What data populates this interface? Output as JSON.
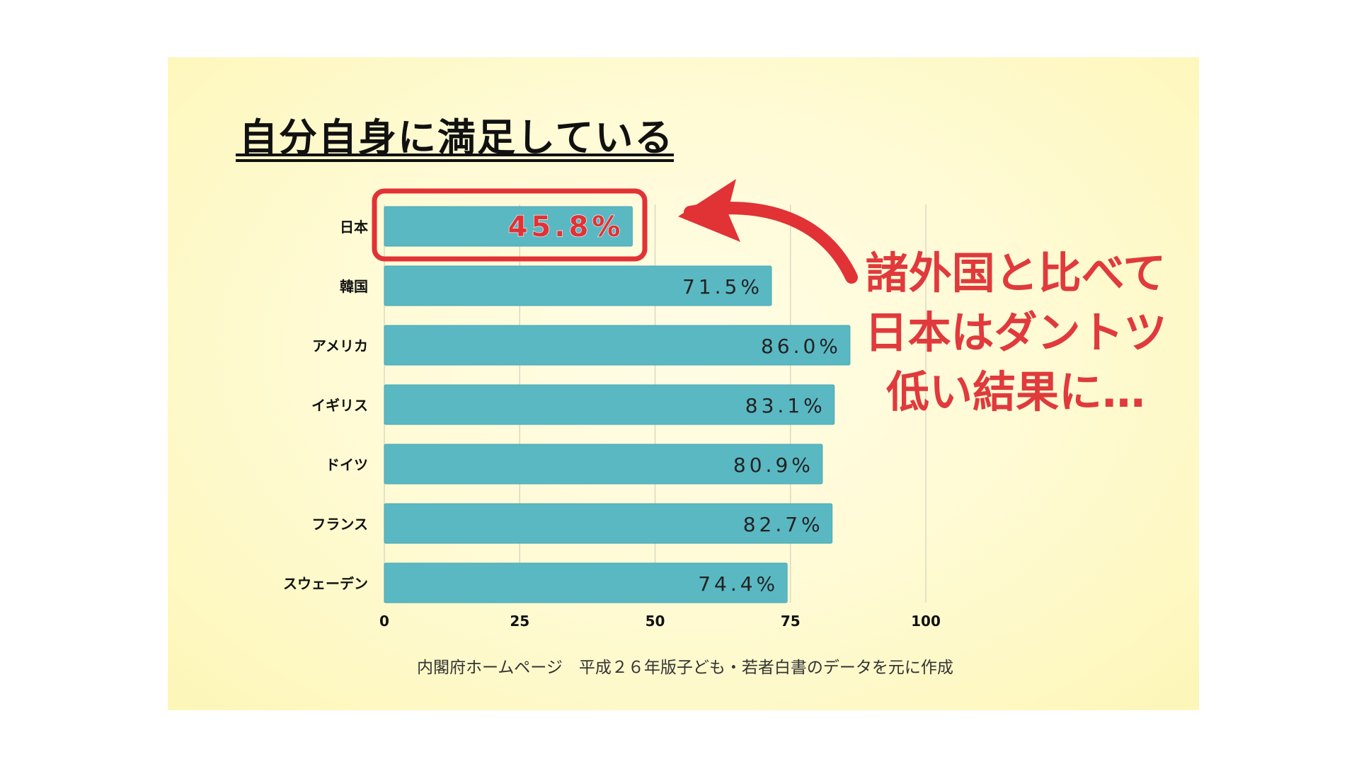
{
  "colors": {
    "bar": "#5ab8c2",
    "bar_edge": "#4aa9b4",
    "highlight": "#e13236",
    "gridline": "#dcd9c2",
    "text_dark": "#111111"
  },
  "title": "自分自身に満足している",
  "callout": {
    "line1": "諸外国と比べて",
    "line2": "日本はダントツ",
    "line3": "低い結果に…"
  },
  "source": "内閣府ホームページ　平成２６年版子ども・若者白書のデータを元に作成",
  "chart_data": {
    "type": "bar",
    "orientation": "horizontal",
    "title": "自分自身に満足している",
    "categories": [
      "日本",
      "韓国",
      "アメリカ",
      "イギリス",
      "ドイツ",
      "フランス",
      "スウェーデン"
    ],
    "values": [
      45.8,
      71.5,
      86.0,
      83.1,
      80.9,
      82.7,
      74.4
    ],
    "value_labels": [
      "45.8%",
      "71.5%",
      "86.0%",
      "83.1%",
      "80.9%",
      "82.7%",
      "74.4%"
    ],
    "highlighted_category": "日本",
    "xlim": [
      0,
      100
    ],
    "xticks": [
      0,
      25,
      50,
      75,
      100
    ],
    "grid": "vertical"
  }
}
